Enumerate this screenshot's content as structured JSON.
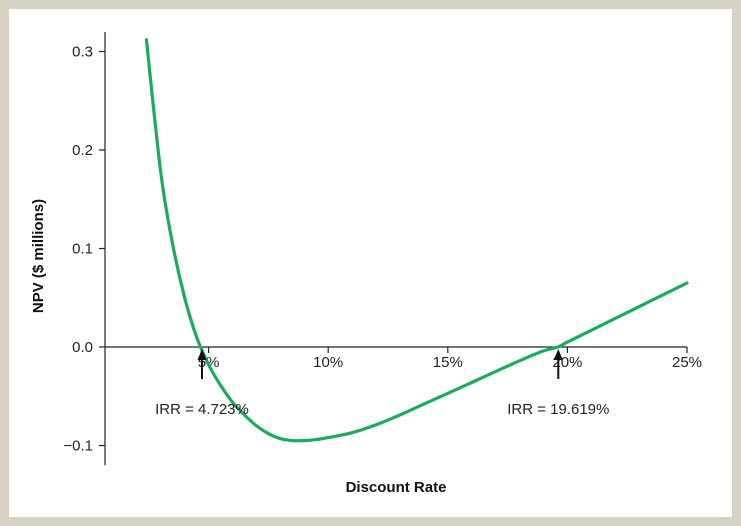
{
  "chart_data": {
    "type": "line",
    "title": "",
    "xlabel": "Discount Rate",
    "ylabel": "NPV ($ millions)",
    "xlim": [
      0.0,
      0.25
    ],
    "ylim": [
      -0.12,
      0.33
    ],
    "x_ticks": [
      {
        "value": 0.05,
        "label": "5%"
      },
      {
        "value": 0.1,
        "label": "10%"
      },
      {
        "value": 0.15,
        "label": "15%"
      },
      {
        "value": 0.2,
        "label": "20%"
      },
      {
        "value": 0.25,
        "label": "25%"
      }
    ],
    "y_ticks": [
      {
        "value": -0.1,
        "label": "−0.1"
      },
      {
        "value": 0.0,
        "label": "0.0"
      },
      {
        "value": 0.1,
        "label": "0.1"
      },
      {
        "value": 0.2,
        "label": "0.2"
      },
      {
        "value": 0.3,
        "label": "0.3"
      }
    ],
    "series": [
      {
        "color": "#1aab5c",
        "x": [
          0.024,
          0.03,
          0.035,
          0.04,
          0.045,
          0.05,
          0.055,
          0.06,
          0.065,
          0.07,
          0.075,
          0.08,
          0.085,
          0.09,
          0.095,
          0.1,
          0.11,
          0.12,
          0.13,
          0.14,
          0.15,
          0.16,
          0.17,
          0.18,
          0.19,
          0.196,
          0.2,
          0.21,
          0.22,
          0.23,
          0.24,
          0.25
        ],
        "y": [
          0.312,
          0.177,
          0.104,
          0.05,
          0.01,
          -0.018,
          -0.039,
          -0.056,
          -0.069,
          -0.08,
          -0.088,
          -0.093,
          -0.095,
          -0.095,
          -0.094,
          -0.092,
          -0.087,
          -0.079,
          -0.069,
          -0.058,
          -0.047,
          -0.036,
          -0.025,
          -0.014,
          -0.004,
          0.0,
          0.005,
          0.017,
          0.029,
          0.041,
          0.053,
          0.065
        ]
      }
    ],
    "annotations": [
      {
        "label": "IRR = 4.723%",
        "x": 0.04723,
        "y": 0.0
      },
      {
        "label": "IRR = 19.619%",
        "x": 0.19619,
        "y": 0.0
      }
    ]
  }
}
